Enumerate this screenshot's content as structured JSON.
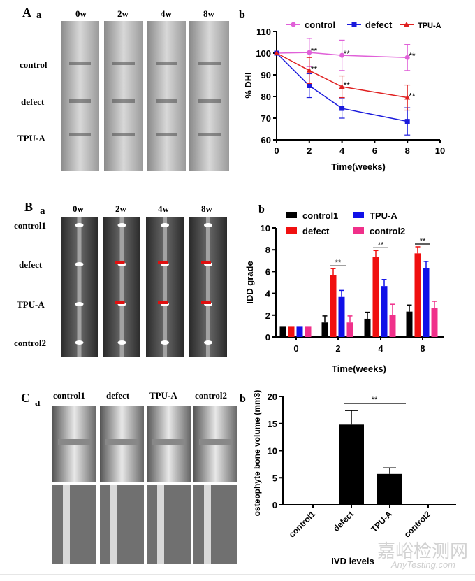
{
  "panelA": {
    "letter": "A",
    "sub_a": "a",
    "sub_b": "b",
    "columns": [
      "0w",
      "2w",
      "4w",
      "8w"
    ],
    "rows": [
      "control",
      "defect",
      "TPU-A"
    ]
  },
  "panelB": {
    "letter": "B",
    "sub_a": "a",
    "sub_b": "b",
    "columns": [
      "0w",
      "2w",
      "4w",
      "8w"
    ],
    "rows": [
      "control1",
      "defect",
      "TPU-A",
      "control2"
    ]
  },
  "panelC": {
    "letter": "C",
    "sub_a": "a",
    "sub_b": "b",
    "columns": [
      "control1",
      "defect",
      "TPU-A",
      "control2"
    ]
  },
  "watermark": {
    "cn": "嘉峪检测网",
    "en": "AnyTesting.com"
  },
  "chart_data": [
    {
      "type": "line",
      "panel": "A b",
      "xlabel": "Time(weeks)",
      "ylabel": "% DHI",
      "xlim": [
        0,
        10
      ],
      "ylim": [
        60,
        110
      ],
      "xticks": [
        "0",
        "2",
        "4",
        "6",
        "8",
        "10"
      ],
      "yticks": [
        "60",
        "70",
        "80",
        "90",
        "100",
        "110"
      ],
      "legend": "top",
      "x": [
        0,
        2,
        4,
        8
      ],
      "series": [
        {
          "name": "control",
          "color": "#e060d8",
          "marker": "circle",
          "values": [
            100,
            100.3,
            99,
            98
          ],
          "err": [
            0,
            6.5,
            7,
            6
          ],
          "sig": [
            "",
            "**",
            "**",
            "**"
          ]
        },
        {
          "name": "defect",
          "color": "#1a1adc",
          "marker": "square",
          "values": [
            100,
            85,
            74.5,
            68.5
          ],
          "err": [
            0,
            5.5,
            4.5,
            6.3
          ],
          "sig": [
            "",
            "",
            "",
            ""
          ]
        },
        {
          "name": "TPU-A",
          "color": "#e02020",
          "marker": "triangle",
          "values": [
            100,
            92,
            84.5,
            79.5
          ],
          "err": [
            0,
            6,
            5,
            5.8
          ],
          "sig": [
            "",
            "**",
            "**",
            "**"
          ]
        }
      ]
    },
    {
      "type": "bar",
      "panel": "B b",
      "xlabel": "Time(weeks)",
      "ylabel": "IDD grade",
      "ylim": [
        0,
        10
      ],
      "yticks": [
        "0",
        "2",
        "4",
        "6",
        "8",
        "10"
      ],
      "categories": [
        "0",
        "2",
        "4",
        "8"
      ],
      "legend": "top",
      "series": [
        {
          "name": "control1",
          "color": "#000000",
          "values": [
            1,
            1.33,
            1.67,
            2.33
          ],
          "err": [
            0,
            0.6,
            0.6,
            0.6
          ]
        },
        {
          "name": "defect",
          "color": "#f01010",
          "values": [
            1,
            5.67,
            7.33,
            7.67
          ],
          "err": [
            0,
            0.6,
            0.6,
            0.6
          ]
        },
        {
          "name": "TPU-A",
          "color": "#1010e8",
          "values": [
            1,
            3.67,
            4.67,
            6.33
          ],
          "err": [
            0,
            0.6,
            0.6,
            0.6
          ]
        },
        {
          "name": "control2",
          "color": "#f0308a",
          "values": [
            1,
            1.33,
            2,
            2.67
          ],
          "err": [
            0,
            0.6,
            1,
            0.6
          ]
        }
      ],
      "sig": [
        "",
        "**",
        "**",
        "**"
      ]
    },
    {
      "type": "bar",
      "panel": "C b",
      "xlabel": "IVD levels",
      "ylabel": "osteophyte bone volume (mm3)",
      "ylim": [
        0,
        20
      ],
      "yticks": [
        "0",
        "5",
        "10",
        "15",
        "20"
      ],
      "categories": [
        "control1",
        "defect",
        "TPU-A",
        "control2"
      ],
      "values": [
        0.1,
        14.8,
        5.7,
        0.1
      ],
      "err": [
        0,
        2.6,
        1.1,
        0
      ],
      "color": "#000000",
      "sig": "**"
    }
  ]
}
